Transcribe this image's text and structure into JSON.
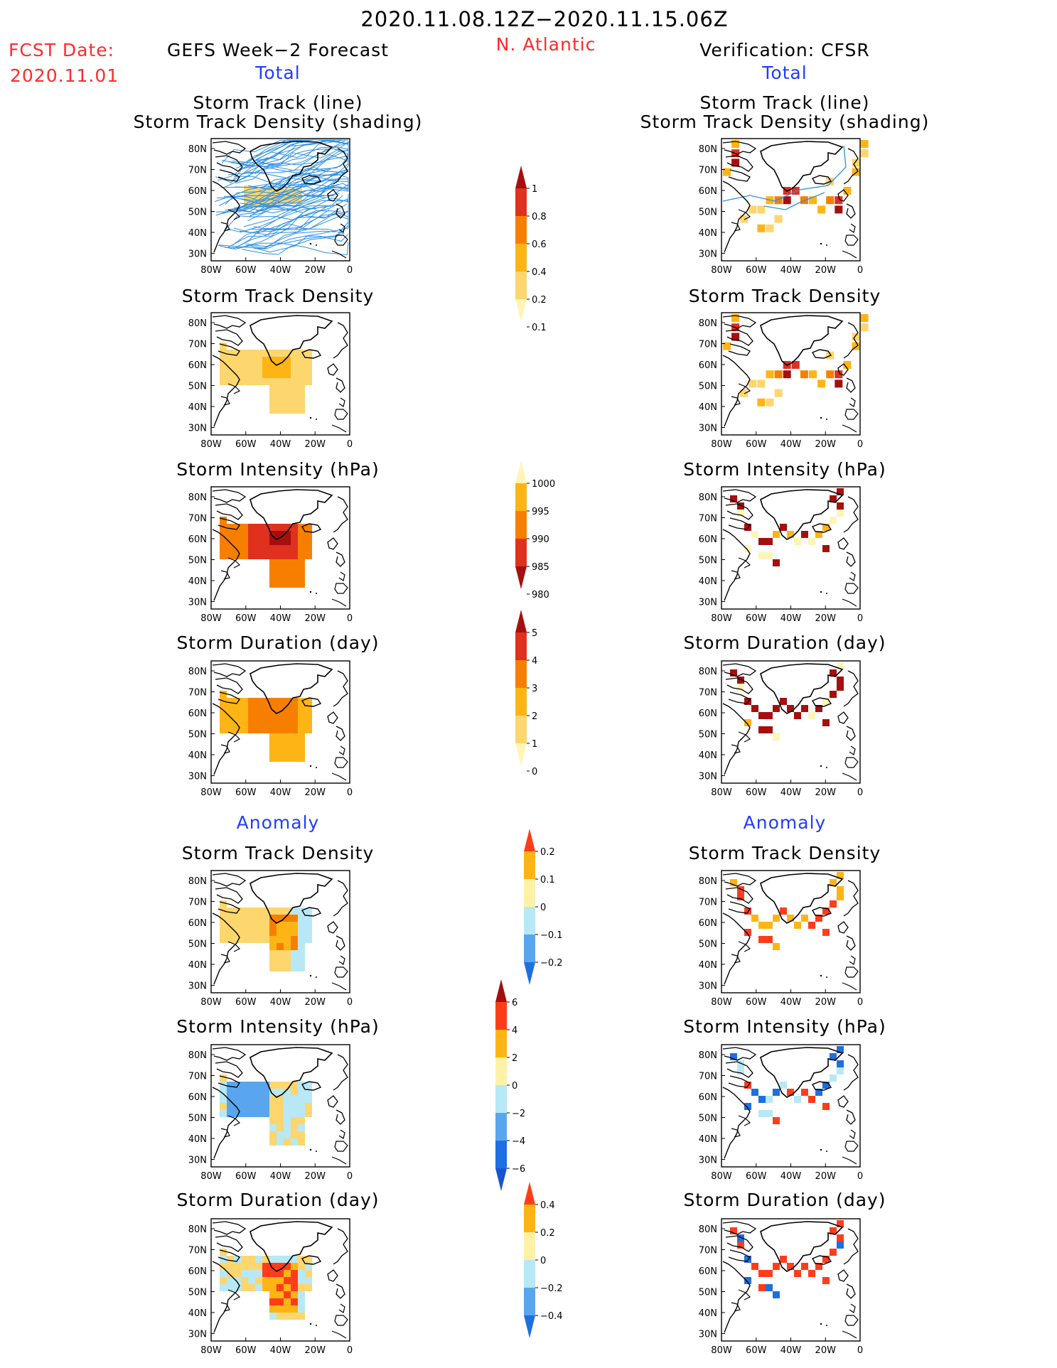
{
  "header": {
    "date_range": "2020.11.08.12Z−2020.11.15.06Z",
    "fcst_label": "FCST Date:",
    "fcst_date": "2020.11.01",
    "left_title": "GEFS Week−2 Forecast",
    "region": "N. Atlantic",
    "right_title": "Verification: CFSR"
  },
  "sections": {
    "total": "Total",
    "anomaly": "Anomaly"
  },
  "panel_titles": {
    "track_line": "Storm Track (line)",
    "track_shading": "Storm Track Density (shading)",
    "density": "Storm Track Density",
    "intensity": "Storm Intensity (hPa)",
    "duration": "Storm Duration (day)"
  },
  "axes": {
    "x_ticks": [
      "80W",
      "60W",
      "40W",
      "20W",
      "0"
    ],
    "y_ticks": [
      "80N",
      "70N",
      "60N",
      "50N",
      "40N",
      "30N"
    ]
  },
  "colorbars": [
    {
      "id": "density",
      "labels": [
        "1",
        "0.8",
        "0.6",
        "0.4",
        "0.2",
        "0.1"
      ],
      "colors": [
        "#a50f0f",
        "#e0301e",
        "#f77f00",
        "#fdb515",
        "#fdd66e",
        "#fff5b8"
      ]
    },
    {
      "id": "intensity",
      "labels": [
        "1000",
        "995",
        "990",
        "985",
        "980"
      ],
      "colors": [
        "#fff5b8",
        "#fdb515",
        "#f77f00",
        "#e0301e",
        "#a50f0f"
      ]
    },
    {
      "id": "duration",
      "labels": [
        "5",
        "4",
        "3",
        "2",
        "1",
        "0"
      ],
      "colors": [
        "#a50f0f",
        "#e0301e",
        "#f77f00",
        "#fdb515",
        "#fdd66e",
        "#fff5b8"
      ]
    },
    {
      "id": "density_anom",
      "labels": [
        "0.2",
        "0.1",
        "0",
        "−0.1",
        "−0.2"
      ],
      "colors": [
        "#ff3d1a",
        "#fdb515",
        "#fff2a6",
        "#b8e8f5",
        "#5aa6ee",
        "#1e6fe0"
      ]
    },
    {
      "id": "intensity_anom",
      "labels": [
        "6",
        "4",
        "2",
        "0",
        "−2",
        "−4",
        "−6"
      ],
      "colors": [
        "#a50f0f",
        "#ff3d1a",
        "#fdb515",
        "#fff2a6",
        "#b8e8f5",
        "#5aa6ee",
        "#1e6fe0",
        "#1556d0"
      ]
    },
    {
      "id": "duration_anom",
      "labels": [
        "0.4",
        "0.2",
        "0",
        "−0.2",
        "−0.4"
      ],
      "colors": [
        "#ff3d1a",
        "#fdb515",
        "#fff2a6",
        "#b8e8f5",
        "#5aa6ee",
        "#1e6fe0"
      ]
    }
  ]
}
